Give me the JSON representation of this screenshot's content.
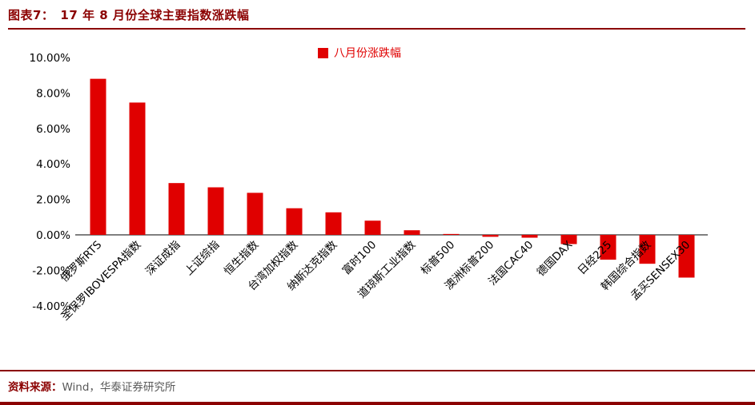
{
  "header": {
    "title": "图表7：　17 年 8 月份全球主要指数涨跌幅"
  },
  "footer": {
    "source_label": "资料来源：",
    "source_text": "Wind，华泰证券研究所"
  },
  "colors": {
    "accent_dark_red": "#8B0000",
    "bar_red": "#E00000",
    "axis_black": "#000000"
  },
  "chart_data": {
    "type": "bar",
    "title": "17 年 8 月份全球主要指数涨跌幅",
    "legend": "八月份涨跌幅",
    "legend_position": "top",
    "grid": false,
    "bar_color": "#E00000",
    "ylim": [
      -4,
      10
    ],
    "y_ticks": [
      "10.00%",
      "8.00%",
      "6.00%",
      "4.00%",
      "2.00%",
      "0.00%",
      "-2.00%",
      "-4.00%"
    ],
    "y_tick_values": [
      10,
      8,
      6,
      4,
      2,
      0,
      -2,
      -4
    ],
    "categories": [
      "俄罗斯RTS",
      "圣保罗IBOVESPA指数",
      "深证成指",
      "上证综指",
      "恒生指数",
      "台湾加权指数",
      "纳斯达克指数",
      "富时100",
      "道琼斯工业指数",
      "标普500",
      "澳洲标普200",
      "法国CAC40",
      "德国DAX",
      "日经225",
      "韩国综合指数",
      "孟买SENSEX30"
    ],
    "values": [
      8.8,
      7.46,
      2.92,
      2.68,
      2.37,
      1.5,
      1.27,
      0.8,
      0.26,
      0.05,
      -0.11,
      -0.16,
      -0.52,
      -1.4,
      -1.63,
      -2.41
    ]
  }
}
